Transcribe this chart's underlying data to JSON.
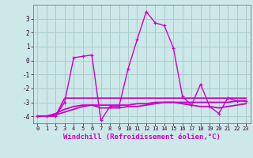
{
  "xlabel": "Windchill (Refroidissement éolien,°C)",
  "background_color": "#cce8e8",
  "grid_color": "#aacccc",
  "line_color": "#cc00cc",
  "x_values": [
    0,
    1,
    2,
    3,
    4,
    5,
    6,
    7,
    8,
    9,
    10,
    11,
    12,
    13,
    14,
    15,
    16,
    17,
    18,
    19,
    20,
    21,
    22,
    23
  ],
  "y_main": [
    -4.0,
    -4.0,
    -4.0,
    -3.0,
    0.2,
    0.3,
    0.4,
    -4.3,
    -3.3,
    -3.3,
    -0.6,
    1.5,
    3.5,
    2.7,
    2.5,
    0.9,
    -2.6,
    -3.2,
    -1.7,
    -3.3,
    -3.8,
    -2.7,
    -2.9,
    -2.9
  ],
  "y_line1": [
    -4.0,
    -4.0,
    -4.0,
    -2.7,
    -2.7,
    -2.7,
    -2.7,
    -2.7,
    -2.7,
    -2.7,
    -2.7,
    -2.7,
    -2.7,
    -2.7,
    -2.7,
    -2.7,
    -2.7,
    -2.7,
    -2.7,
    -2.7,
    -2.7,
    -2.7,
    -2.7,
    -2.7
  ],
  "y_line2": [
    -4.0,
    -4.0,
    -3.9,
    -3.7,
    -3.5,
    -3.3,
    -3.2,
    -3.2,
    -3.2,
    -3.2,
    -3.2,
    -3.1,
    -3.1,
    -3.0,
    -3.0,
    -3.0,
    -3.0,
    -3.0,
    -3.0,
    -3.0,
    -3.0,
    -3.0,
    -2.9,
    -2.9
  ],
  "y_line3": [
    -4.0,
    -4.0,
    -3.8,
    -3.5,
    -3.3,
    -3.2,
    -3.2,
    -3.4,
    -3.4,
    -3.4,
    -3.3,
    -3.3,
    -3.2,
    -3.1,
    -3.0,
    -3.0,
    -3.1,
    -3.2,
    -3.3,
    -3.3,
    -3.4,
    -3.3,
    -3.2,
    -3.1
  ],
  "ylim": [
    -4.5,
    4.0
  ],
  "yticks": [
    -4,
    -3,
    -2,
    -1,
    0,
    1,
    2,
    3
  ],
  "xlim": [
    -0.5,
    23.5
  ]
}
